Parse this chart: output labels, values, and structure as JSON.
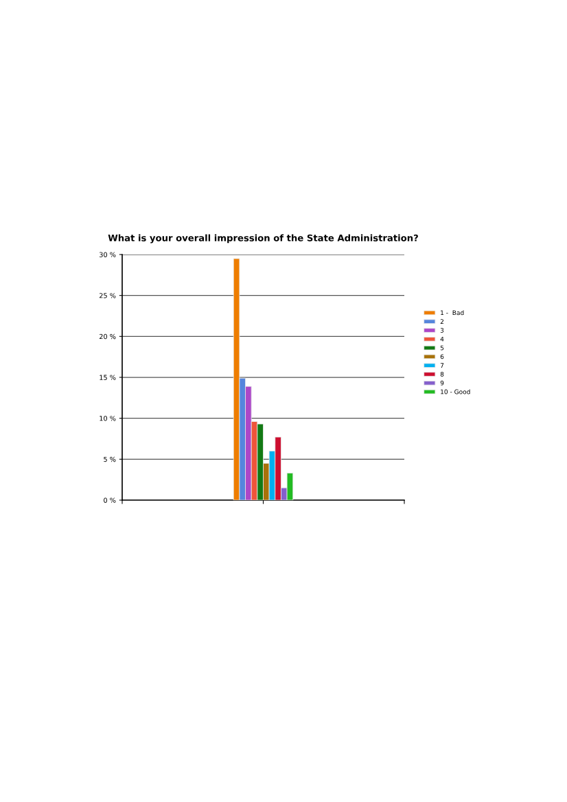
{
  "chart_data": {
    "type": "bar",
    "title": "What is your overall impression of the State Administration?",
    "categories": [
      null
    ],
    "series": [
      {
        "name": "1 -  Bad",
        "color": "#ee7d00",
        "values": [
          29.5
        ]
      },
      {
        "name": "2",
        "color": "#5585dd",
        "values": [
          14.9
        ]
      },
      {
        "name": "3",
        "color": "#ac47c8",
        "values": [
          13.9
        ]
      },
      {
        "name": "4",
        "color": "#ef553a",
        "values": [
          9.6
        ]
      },
      {
        "name": "5",
        "color": "#137a14",
        "values": [
          9.3
        ]
      },
      {
        "name": "6",
        "color": "#a8720a",
        "values": [
          4.5
        ]
      },
      {
        "name": "7",
        "color": "#00b0f0",
        "values": [
          6.0
        ]
      },
      {
        "name": "8",
        "color": "#cd0e2f",
        "values": [
          7.7
        ]
      },
      {
        "name": "9",
        "color": "#8560cc",
        "values": [
          1.5
        ]
      },
      {
        "name": "10 - Good",
        "color": "#22bb22",
        "values": [
          3.3
        ]
      }
    ],
    "ylim": [
      0,
      30
    ],
    "yticks": [
      {
        "value": 0,
        "label": "0 %"
      },
      {
        "value": 5,
        "label": "5 %"
      },
      {
        "value": 10,
        "label": "10 %"
      },
      {
        "value": 15,
        "label": "15 %"
      },
      {
        "value": 20,
        "label": "20 %"
      },
      {
        "value": 25,
        "label": "25 %"
      },
      {
        "value": 30,
        "label": "30 %"
      }
    ],
    "grid": "y",
    "legend": "right",
    "tick_labels": "y"
  }
}
